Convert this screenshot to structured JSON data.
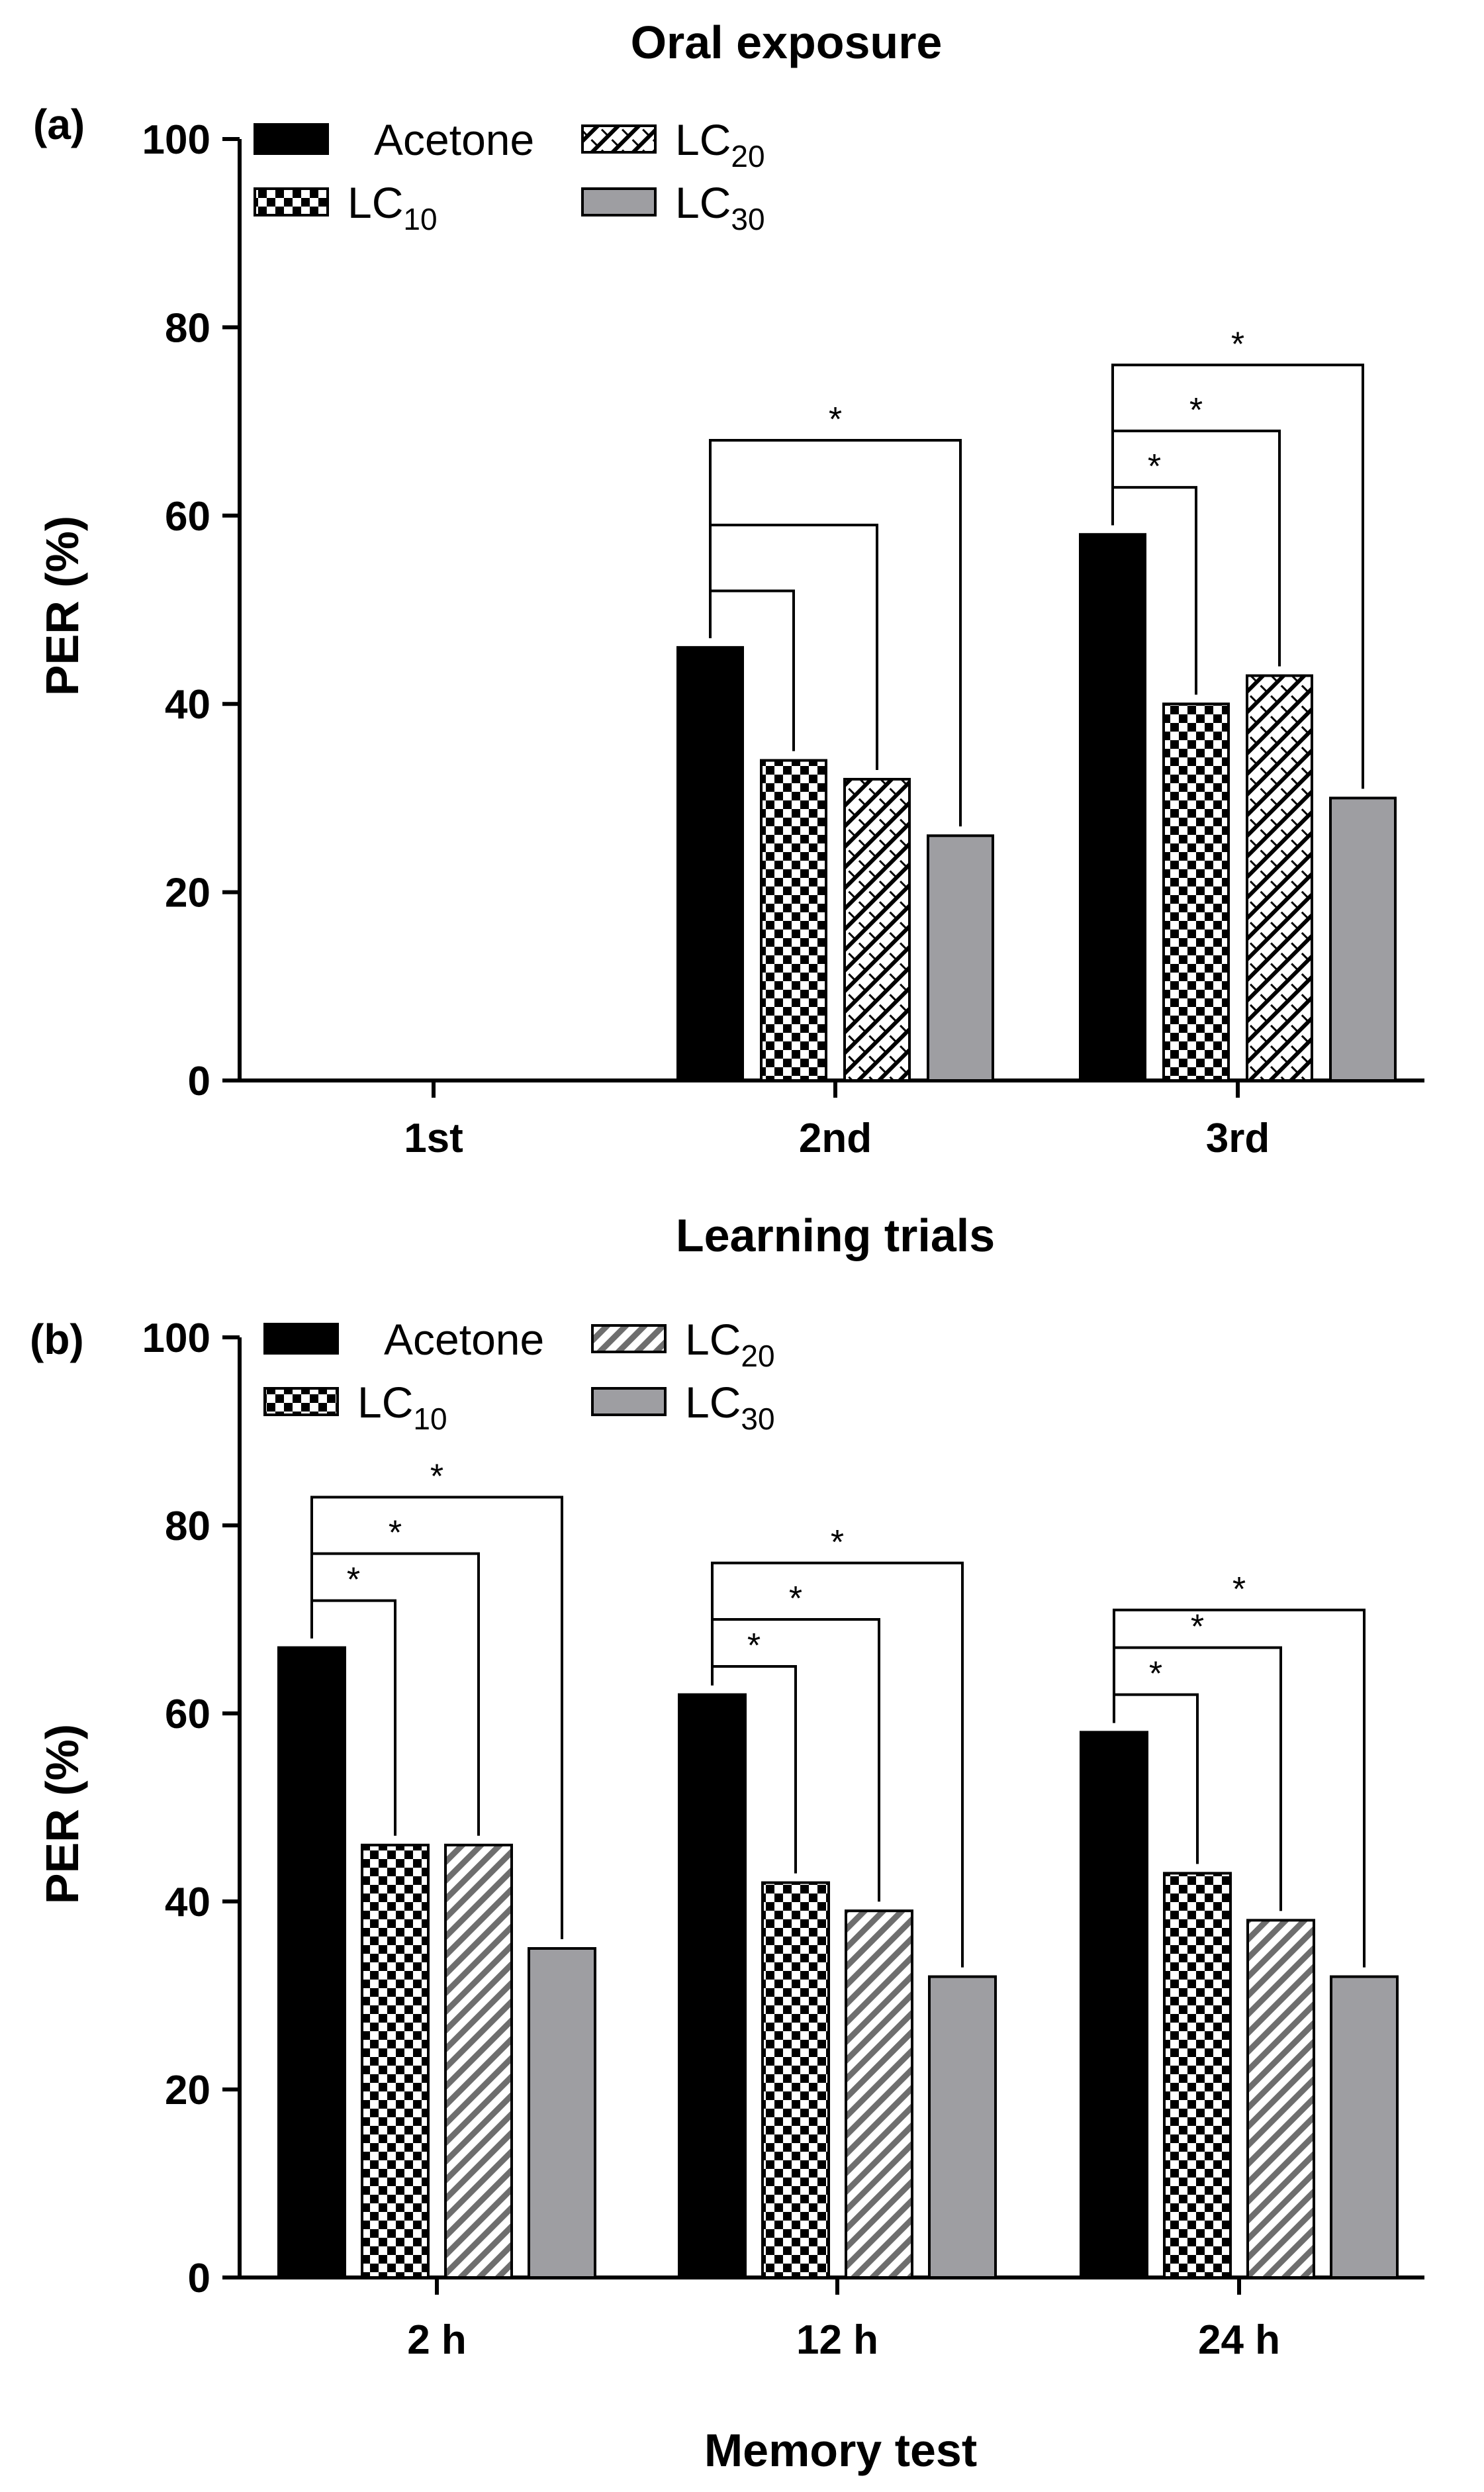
{
  "chart_data": [
    {
      "type": "bar",
      "panel_label": "(a)",
      "title": "Oral exposure",
      "xlabel": "Learning trials",
      "ylabel": "PER (%)",
      "ylim": [
        0,
        100
      ],
      "yticks": [
        0,
        20,
        40,
        60,
        80,
        100
      ],
      "grid": false,
      "legend_position": "top-left",
      "categories": [
        "1st",
        "2nd",
        "3rd"
      ],
      "series": [
        {
          "name": "Acetone",
          "label": "Acetone",
          "sub": "",
          "pattern": "solid",
          "color": "#000000",
          "values": [
            0,
            46,
            58
          ]
        },
        {
          "name": "LC10",
          "label": "LC",
          "sub": "10",
          "pattern": "checker",
          "color": "#000000",
          "values": [
            0,
            34,
            40
          ]
        },
        {
          "name": "LC20",
          "label": "LC",
          "sub": "20",
          "pattern": "hatch",
          "color": "#000000",
          "values": [
            0,
            32,
            43
          ]
        },
        {
          "name": "LC30",
          "label": "LC",
          "sub": "30",
          "pattern": "solid",
          "color": "#9e9ea2",
          "values": [
            0,
            26,
            30
          ]
        }
      ],
      "annotations": [
        {
          "category": 1,
          "compare": 1,
          "level": 52,
          "text": ""
        },
        {
          "category": 1,
          "compare": 2,
          "level": 59,
          "text": ""
        },
        {
          "category": 1,
          "compare": 3,
          "level": 68,
          "text": "*"
        },
        {
          "category": 2,
          "compare": 1,
          "level": 63,
          "text": "*"
        },
        {
          "category": 2,
          "compare": 2,
          "level": 69,
          "text": "*"
        },
        {
          "category": 2,
          "compare": 3,
          "level": 76,
          "text": "*"
        }
      ]
    },
    {
      "type": "bar",
      "panel_label": "(b)",
      "title": "",
      "xlabel": "Memory test",
      "ylabel": "PER (%)",
      "ylim": [
        0,
        100
      ],
      "yticks": [
        0,
        20,
        40,
        60,
        80,
        100
      ],
      "grid": false,
      "legend_position": "top-left",
      "categories": [
        "2 h",
        "12 h",
        "24 h"
      ],
      "series": [
        {
          "name": "Acetone",
          "label": "Acetone",
          "sub": "",
          "pattern": "solid",
          "color": "#000000",
          "values": [
            67,
            62,
            58
          ]
        },
        {
          "name": "LC10",
          "label": "LC",
          "sub": "10",
          "pattern": "checker",
          "color": "#000000",
          "values": [
            46,
            42,
            43
          ]
        },
        {
          "name": "LC20",
          "label": "LC",
          "sub": "20",
          "pattern": "hatch-gray",
          "color": "#7a7a7a",
          "values": [
            46,
            39,
            38
          ]
        },
        {
          "name": "LC30",
          "label": "LC",
          "sub": "30",
          "pattern": "solid",
          "color": "#9e9ea2",
          "values": [
            35,
            32,
            32
          ]
        }
      ],
      "annotations": [
        {
          "category": 0,
          "compare": 1,
          "level": 72,
          "text": "*"
        },
        {
          "category": 0,
          "compare": 2,
          "level": 77,
          "text": "*"
        },
        {
          "category": 0,
          "compare": 3,
          "level": 83,
          "text": "*"
        },
        {
          "category": 1,
          "compare": 1,
          "level": 65,
          "text": "*"
        },
        {
          "category": 1,
          "compare": 2,
          "level": 70,
          "text": "*"
        },
        {
          "category": 1,
          "compare": 3,
          "level": 76,
          "text": "*"
        },
        {
          "category": 2,
          "compare": 1,
          "level": 62,
          "text": "*"
        },
        {
          "category": 2,
          "compare": 2,
          "level": 67,
          "text": "*"
        },
        {
          "category": 2,
          "compare": 3,
          "level": 71,
          "text": "*"
        }
      ]
    }
  ]
}
